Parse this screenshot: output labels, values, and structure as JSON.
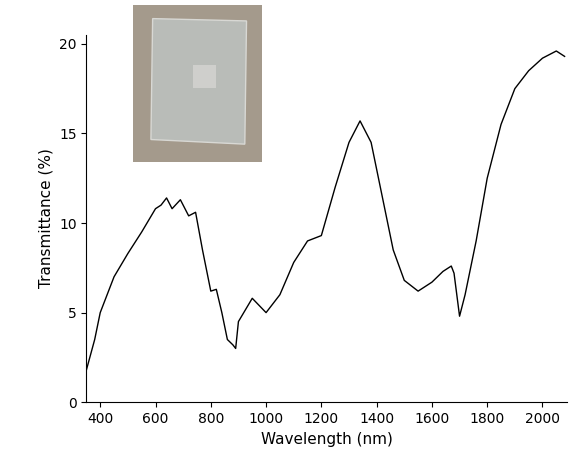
{
  "chart_data": {
    "type": "line",
    "x_label": "Wavelength (nm)",
    "y_label": "Transmittance (%)",
    "xlim": [
      350,
      2090
    ],
    "ylim": [
      0,
      20.5
    ],
    "xticks": [
      400,
      600,
      800,
      1000,
      1200,
      1400,
      1600,
      1800,
      2000
    ],
    "yticks": [
      0,
      5,
      10,
      15,
      20
    ],
    "grid": false,
    "series": [
      {
        "name": "Transmittance",
        "color": "#000000",
        "x": [
          350,
          380,
          400,
          450,
          500,
          550,
          600,
          620,
          640,
          660,
          690,
          720,
          745,
          770,
          800,
          820,
          840,
          860,
          880,
          890,
          900,
          950,
          1000,
          1050,
          1100,
          1150,
          1200,
          1250,
          1300,
          1340,
          1380,
          1420,
          1460,
          1500,
          1550,
          1600,
          1640,
          1670,
          1680,
          1700,
          1720,
          1760,
          1800,
          1850,
          1900,
          1950,
          2000,
          2050,
          2080
        ],
        "values": [
          1.8,
          3.5,
          5.0,
          7.0,
          8.3,
          9.5,
          10.8,
          11.0,
          11.4,
          10.8,
          11.3,
          10.4,
          10.6,
          8.5,
          6.2,
          6.3,
          5.0,
          3.5,
          3.2,
          3.0,
          4.5,
          5.8,
          5.0,
          6.0,
          7.8,
          9.0,
          9.3,
          12.0,
          14.5,
          15.7,
          14.5,
          11.5,
          8.5,
          6.8,
          6.2,
          6.7,
          7.3,
          7.6,
          7.2,
          4.8,
          6.0,
          9.0,
          12.5,
          15.5,
          17.5,
          18.5,
          19.2,
          19.6,
          19.3
        ]
      }
    ]
  }
}
